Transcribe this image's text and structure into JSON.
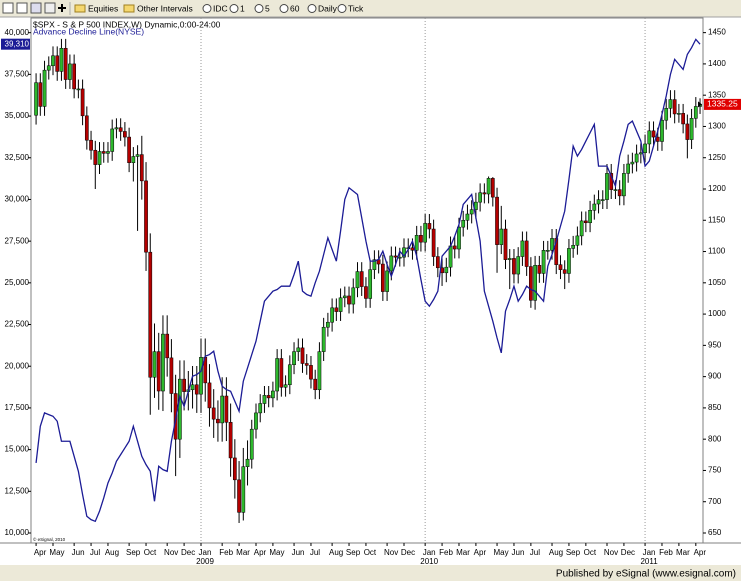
{
  "toolbar": {
    "items": [
      "Equities",
      "Other Intervals",
      "IDC",
      "1",
      "5",
      "60",
      "Daily",
      "Tick"
    ]
  },
  "footer": {
    "publisher": "Published by eSignal (www.esignal.com)"
  },
  "chart_data": {
    "type": "candlestick",
    "title": "$SPX - S & P 500 INDEX,W) Dynamic,0:00-24:00",
    "copyright": "© eSignal, 2010",
    "xlim": [
      -1.2,
      157.7
    ],
    "xticks": [
      {
        "value": 0,
        "label": "Apr"
      },
      {
        "value": 4,
        "label": "May"
      },
      {
        "value": 9,
        "label": "Jun"
      },
      {
        "value": 13,
        "label": "Jul"
      },
      {
        "value": 17,
        "label": "Aug"
      },
      {
        "value": 22,
        "label": "Sep"
      },
      {
        "value": 26,
        "label": "Oct"
      },
      {
        "value": 31,
        "label": "Nov"
      },
      {
        "value": 35,
        "label": "Dec"
      },
      {
        "value": 39,
        "label": "Jan"
      },
      {
        "value": 44,
        "label": "Feb"
      },
      {
        "value": 48,
        "label": "Mar"
      },
      {
        "value": 52,
        "label": "Apr"
      },
      {
        "value": 56,
        "label": "May"
      },
      {
        "value": 61,
        "label": "Jun"
      },
      {
        "value": 65,
        "label": "Jul"
      },
      {
        "value": 70,
        "label": "Aug"
      },
      {
        "value": 74,
        "label": "Sep"
      },
      {
        "value": 78,
        "label": "Oct"
      },
      {
        "value": 83,
        "label": "Nov"
      },
      {
        "value": 87,
        "label": "Dec"
      },
      {
        "value": 92,
        "label": "Jan"
      },
      {
        "value": 96,
        "label": "Feb"
      },
      {
        "value": 100,
        "label": "Mar"
      },
      {
        "value": 104,
        "label": "Apr"
      },
      {
        "value": 109,
        "label": "May"
      },
      {
        "value": 113,
        "label": "Jun"
      },
      {
        "value": 117,
        "label": "Jul"
      },
      {
        "value": 122,
        "label": "Aug"
      },
      {
        "value": 126,
        "label": "Sep"
      },
      {
        "value": 130,
        "label": "Oct"
      },
      {
        "value": 135,
        "label": "Nov"
      },
      {
        "value": 139,
        "label": "Dec"
      },
      {
        "value": 144,
        "label": "Jan"
      },
      {
        "value": 148,
        "label": "Feb"
      },
      {
        "value": 152,
        "label": "Mar"
      },
      {
        "value": 156,
        "label": "Apr"
      }
    ],
    "year_ticks": [
      {
        "value": 39,
        "label": "2009"
      },
      {
        "value": 92,
        "label": "2010"
      },
      {
        "value": 144,
        "label": "2011"
      }
    ],
    "ylim": [
      9400,
      40940
    ],
    "yticks": [
      {
        "value": 10000,
        "label": "10,000"
      },
      {
        "value": 12500,
        "label": "12,500"
      },
      {
        "value": 15000,
        "label": "15,000"
      },
      {
        "value": 17500,
        "label": "17,500"
      },
      {
        "value": 20000,
        "label": "20,000"
      },
      {
        "value": 22500,
        "label": "22,500"
      },
      {
        "value": 25000,
        "label": "25,000"
      },
      {
        "value": 27500,
        "label": "27,500"
      },
      {
        "value": 30000,
        "label": "30,000"
      },
      {
        "value": 32500,
        "label": "32,500"
      },
      {
        "value": 35000,
        "label": "35,000"
      },
      {
        "value": 37500,
        "label": "37,500"
      },
      {
        "value": 40000,
        "label": "40,000"
      }
    ],
    "y2lim": [
      634,
      1475
    ],
    "y2ticks": [
      650,
      700,
      750,
      800,
      850,
      900,
      950,
      1000,
      1050,
      1100,
      1150,
      1200,
      1250,
      1300,
      1350,
      1400,
      1450
    ],
    "year_grid": true,
    "series": [
      {
        "axis": "y2",
        "up_color": "#2db82d",
        "down_color": "#b40000",
        "open": [
          1318,
          1370,
          1332,
          1390,
          1397,
          1413,
          1388,
          1425,
          1375,
          1400,
          1360,
          1360,
          1317,
          1278,
          1262,
          1239,
          1260,
          1257,
          1260,
          1296,
          1298,
          1292,
          1283,
          1242,
          1252,
          1255,
          1213,
          1099,
          899,
          940,
          877,
          968,
          930,
          873,
          800,
          896,
          876,
          879,
          887,
          872,
          931,
          890,
          850,
          832,
          826,
          869,
          827,
          770,
          735,
          683,
          756,
          768,
          816,
          842,
          857,
          870,
          866,
          877,
          929,
          883,
          887,
          919,
          940,
          946,
          921,
          918,
          896,
          879,
          940,
          979,
          987,
          1010,
          1004,
          1026,
          1029,
          1016,
          1042,
          1068,
          1044,
          1025,
          1071,
          1087,
          1080,
          1036,
          1069,
          1093,
          1091,
          1091,
          1106,
          1106,
          1102,
          1126,
          1115,
          1145,
          1136,
          1092,
          1074,
          1066,
          1075,
          1109,
          1104,
          1139,
          1150,
          1160,
          1167,
          1179,
          1194,
          1192,
          1217,
          1187,
          1111,
          1136,
          1087,
          1089,
          1064,
          1092,
          1117,
          1076,
          1022,
          1078,
          1065,
          1102,
          1102,
          1121,
          1079,
          1071,
          1065,
          1105,
          1110,
          1125,
          1149,
          1146,
          1166,
          1176,
          1183,
          1183,
          1225,
          1199,
          1199,
          1189,
          1225,
          1240,
          1243,
          1256,
          1258,
          1272,
          1293,
          1283,
          1276,
          1310,
          1329,
          1343,
          1320,
          1321,
          1304,
          1279,
          1313,
          1332
        ],
        "high": [
          1385,
          1385,
          1405,
          1412,
          1428,
          1428,
          1440,
          1440,
          1415,
          1415,
          1375,
          1375,
          1332,
          1293,
          1277,
          1275,
          1275,
          1275,
          1311,
          1313,
          1313,
          1307,
          1298,
          1267,
          1270,
          1285,
          1243,
          1129,
          985,
          970,
          998,
          998,
          960,
          903,
          926,
          926,
          909,
          917,
          917,
          961,
          961,
          920,
          880,
          862,
          899,
          899,
          857,
          800,
          765,
          786,
          798,
          831,
          857,
          872,
          885,
          885,
          892,
          944,
          944,
          902,
          934,
          955,
          961,
          961,
          936,
          933,
          911,
          955,
          994,
          1002,
          1025,
          1025,
          1041,
          1044,
          1044,
          1057,
          1083,
          1083,
          1059,
          1086,
          1102,
          1102,
          1095,
          1084,
          1108,
          1108,
          1106,
          1121,
          1121,
          1121,
          1141,
          1141,
          1160,
          1160,
          1151,
          1107,
          1089,
          1090,
          1124,
          1124,
          1154,
          1165,
          1175,
          1182,
          1194,
          1209,
          1209,
          1220,
          1219,
          1202,
          1173,
          1151,
          1104,
          1104,
          1107,
          1132,
          1132,
          1091,
          1093,
          1093,
          1117,
          1117,
          1136,
          1136,
          1094,
          1086,
          1120,
          1125,
          1140,
          1164,
          1164,
          1181,
          1191,
          1198,
          1198,
          1240,
          1240,
          1214,
          1214,
          1240,
          1255,
          1258,
          1271,
          1273,
          1287,
          1308,
          1308,
          1298,
          1325,
          1344,
          1358,
          1358,
          1336,
          1336,
          1319,
          1328,
          1347,
          1345
        ],
        "low": [
          1303,
          1317,
          1317,
          1375,
          1382,
          1373,
          1373,
          1360,
          1360,
          1345,
          1345,
          1302,
          1263,
          1247,
          1200,
          1224,
          1242,
          1242,
          1245,
          1281,
          1277,
          1268,
          1227,
          1212,
          1133,
          1183,
          1069,
          839,
          866,
          847,
          845,
          900,
          843,
          741,
          770,
          846,
          846,
          849,
          842,
          842,
          860,
          820,
          802,
          796,
          796,
          797,
          740,
          705,
          666,
          670,
          726,
          753,
          801,
          827,
          842,
          851,
          851,
          862,
          868,
          868,
          872,
          904,
          925,
          906,
          903,
          881,
          864,
          864,
          925,
          964,
          972,
          989,
          989,
          1011,
          1001,
          1001,
          1027,
          1029,
          1010,
          1010,
          1056,
          1065,
          1021,
          1021,
          1054,
          1076,
          1076,
          1076,
          1091,
          1087,
          1087,
          1100,
          1100,
          1121,
          1077,
          1059,
          1045,
          1051,
          1060,
          1089,
          1089,
          1124,
          1135,
          1145,
          1152,
          1164,
          1177,
          1177,
          1172,
          1066,
          1096,
          1072,
          1040,
          1049,
          1049,
          1077,
          1061,
          1010,
          1007,
          1050,
          1050,
          1087,
          1087,
          1064,
          1056,
          1040,
          1050,
          1090,
          1095,
          1110,
          1131,
          1131,
          1151,
          1161,
          1168,
          1168,
          1184,
          1184,
          1174,
          1174,
          1210,
          1225,
          1228,
          1241,
          1243,
          1257,
          1268,
          1261,
          1261,
          1295,
          1314,
          1305,
          1306,
          1289,
          1249,
          1264,
          1298,
          1320
        ],
        "close": [
          1370,
          1332,
          1390,
          1397,
          1413,
          1388,
          1425,
          1375,
          1400,
          1360,
          1360,
          1317,
          1278,
          1262,
          1239,
          1260,
          1257,
          1260,
          1296,
          1298,
          1292,
          1283,
          1242,
          1252,
          1255,
          1213,
          1099,
          899,
          940,
          877,
          968,
          930,
          873,
          800,
          896,
          876,
          879,
          887,
          872,
          931,
          890,
          850,
          832,
          826,
          869,
          827,
          770,
          735,
          683,
          756,
          768,
          816,
          842,
          857,
          870,
          866,
          877,
          929,
          883,
          887,
          919,
          940,
          946,
          921,
          918,
          896,
          879,
          940,
          979,
          987,
          1010,
          1004,
          1026,
          1029,
          1016,
          1042,
          1068,
          1044,
          1025,
          1071,
          1087,
          1080,
          1036,
          1069,
          1093,
          1091,
          1091,
          1106,
          1106,
          1102,
          1126,
          1115,
          1145,
          1136,
          1092,
          1074,
          1066,
          1075,
          1109,
          1104,
          1139,
          1150,
          1160,
          1167,
          1179,
          1194,
          1192,
          1217,
          1187,
          1111,
          1136,
          1087,
          1089,
          1064,
          1092,
          1117,
          1076,
          1022,
          1078,
          1065,
          1102,
          1102,
          1121,
          1079,
          1071,
          1065,
          1105,
          1110,
          1125,
          1149,
          1146,
          1166,
          1176,
          1183,
          1183,
          1225,
          1199,
          1199,
          1189,
          1225,
          1240,
          1243,
          1256,
          1258,
          1272,
          1293,
          1283,
          1276,
          1310,
          1329,
          1343,
          1320,
          1321,
          1304,
          1279,
          1313,
          1332,
          1335.25
        ]
      },
      {
        "name": "Advance Decline Line(NYSE)",
        "type": "line",
        "color": "#1c1c96",
        "last_label": "39,310",
        "values": [
          14200,
          16400,
          17200,
          17100,
          17000,
          16700,
          15500,
          15500,
          15500,
          14600,
          13700,
          12300,
          11000,
          10800,
          10700,
          11300,
          12100,
          13000,
          13600,
          14300,
          14700,
          15100,
          15500,
          16400,
          15500,
          14600,
          14100,
          13700,
          11900,
          14000,
          13800,
          13700,
          15500,
          16800,
          18200,
          17600,
          18500,
          19400,
          19500,
          19700,
          20600,
          20700,
          20900,
          19700,
          18800,
          18600,
          18500,
          17900,
          17300,
          19100,
          19900,
          20700,
          21500,
          22700,
          23900,
          24200,
          24500,
          24600,
          24800,
          24800,
          24800,
          25500,
          26300,
          24500,
          24300,
          24200,
          25000,
          25700,
          26700,
          27700,
          27000,
          26300,
          28100,
          30000,
          30700,
          30500,
          30300,
          28900,
          27500,
          26300,
          26300,
          26400,
          26900,
          26100,
          25400,
          26100,
          26900,
          26600,
          27000,
          27500,
          26600,
          25200,
          23900,
          23600,
          24000,
          24500,
          26600,
          26900,
          27200,
          27800,
          28500,
          29700,
          30000,
          30300,
          28900,
          27500,
          24500,
          23600,
          22700,
          21700,
          20800,
          23300,
          24000,
          24800,
          23900,
          24300,
          24800,
          24600,
          24500,
          24200,
          23900,
          26000,
          26700,
          27500,
          28400,
          29300,
          31200,
          33200,
          32600,
          33000,
          33500,
          34000,
          34500,
          32000,
          32000,
          32000,
          31400,
          30800,
          32600,
          33500,
          34500,
          34700,
          34100,
          33500,
          32000,
          32300,
          33200,
          34100,
          35100,
          36200,
          37500,
          38400,
          38100,
          37800,
          38700,
          39100,
          39600,
          39310
        ]
      }
    ]
  }
}
